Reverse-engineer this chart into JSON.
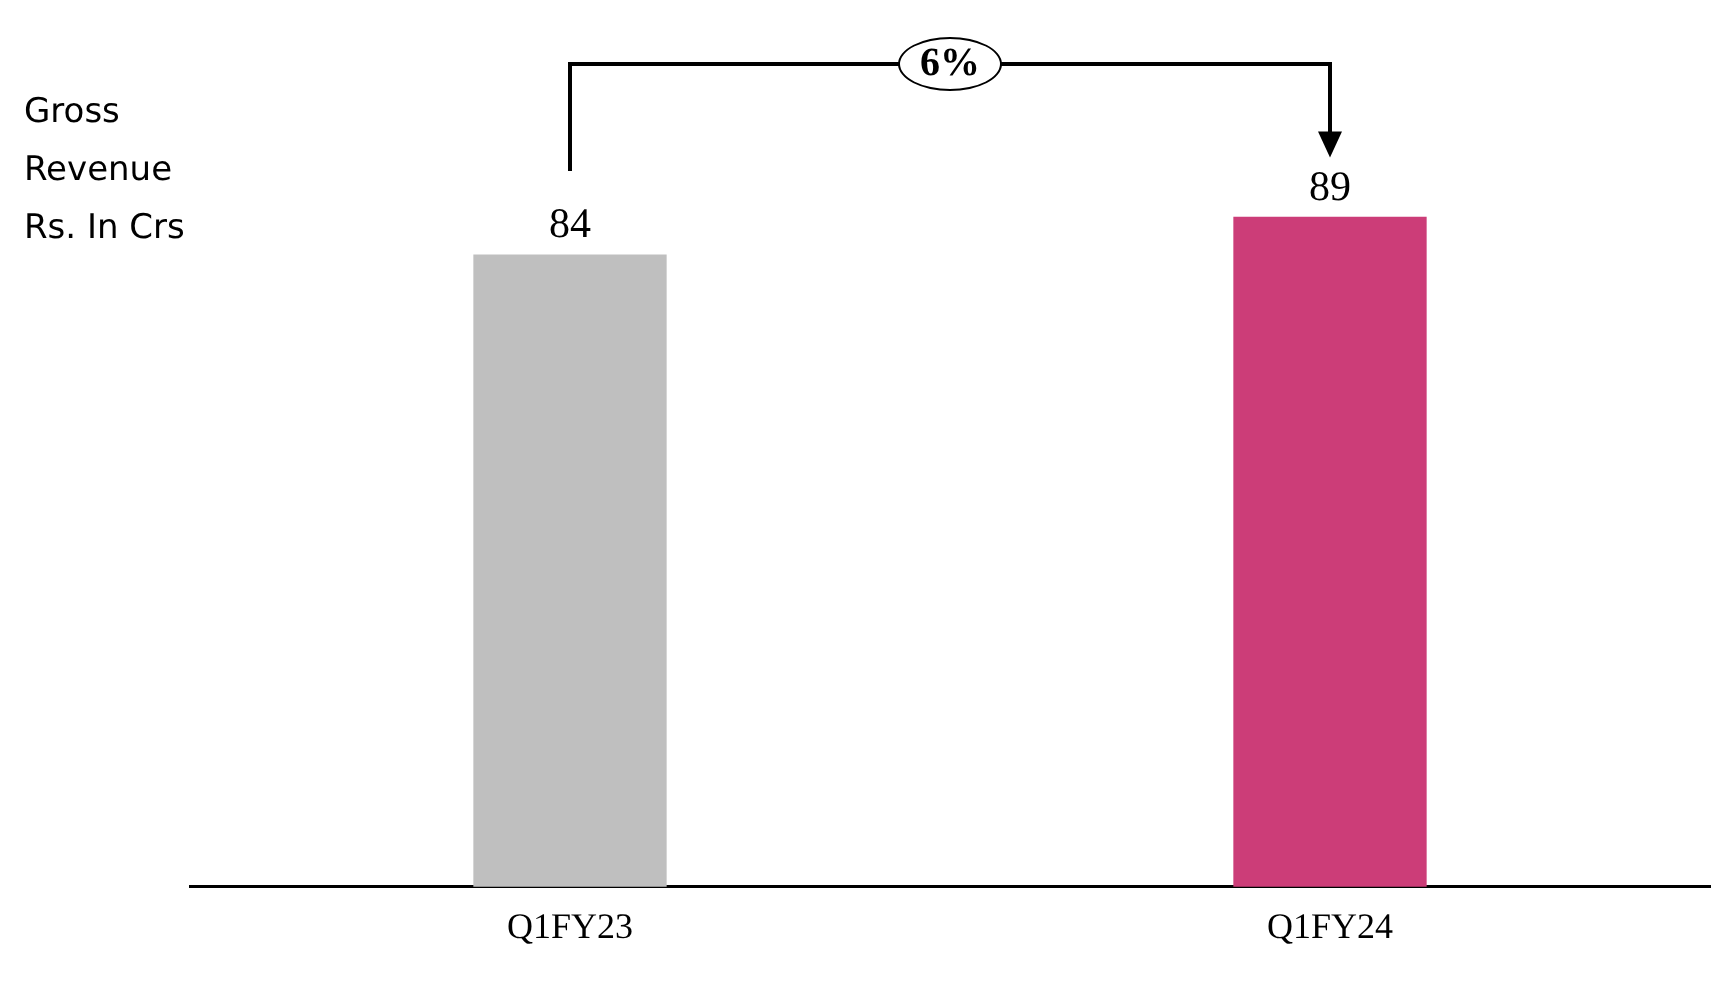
{
  "chart_data": {
    "type": "bar",
    "ylabel": "Gross\nRevenue\nRs. In Crs",
    "categories": [
      "Q1FY23",
      "Q1FY24"
    ],
    "values": [
      84,
      89
    ],
    "colors": [
      "#bfbfbf",
      "#cc3d78"
    ],
    "tick_labels": "x",
    "data_labels": true,
    "grid": false,
    "legend": false,
    "annotations": [
      "6%"
    ]
  }
}
